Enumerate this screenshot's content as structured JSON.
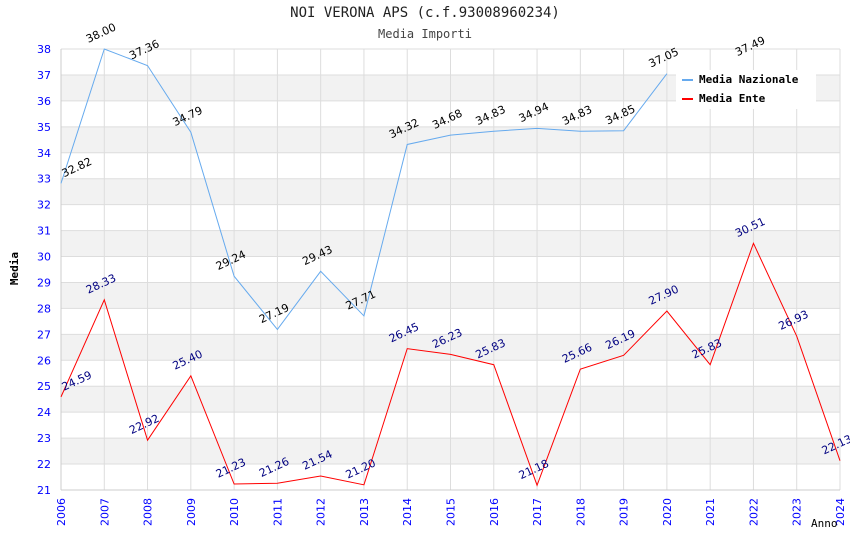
{
  "chart_data": {
    "type": "line",
    "title": "NOI VERONA APS (c.f.93008960234)",
    "subtitle": "Media Importi",
    "xlabel": "Anno",
    "ylabel": "Media",
    "x": [
      2006,
      2007,
      2008,
      2009,
      2010,
      2011,
      2012,
      2013,
      2014,
      2015,
      2016,
      2017,
      2018,
      2019,
      2020,
      2021,
      2022,
      2023,
      2024
    ],
    "ylim": [
      21,
      38
    ],
    "yticks": [
      21,
      22,
      23,
      24,
      25,
      26,
      27,
      28,
      29,
      30,
      31,
      32,
      33,
      34,
      35,
      36,
      37,
      38
    ],
    "grid": true,
    "legend_position": "top-right",
    "series": [
      {
        "name": "Media Nazionale",
        "color": "#66aaee",
        "label_color": "#000000",
        "values": [
          32.82,
          38.0,
          37.36,
          34.79,
          29.24,
          27.19,
          29.43,
          27.71,
          34.32,
          34.68,
          34.83,
          34.94,
          34.83,
          34.85,
          37.05,
          null,
          37.49,
          null,
          null
        ]
      },
      {
        "name": "Media Ente",
        "color": "#ff0000",
        "label_color": "#000080",
        "values": [
          24.59,
          28.33,
          22.92,
          25.4,
          21.23,
          21.26,
          21.54,
          21.2,
          26.45,
          26.23,
          25.83,
          21.18,
          25.66,
          26.19,
          27.9,
          25.83,
          30.51,
          26.93,
          22.13
        ]
      }
    ]
  }
}
